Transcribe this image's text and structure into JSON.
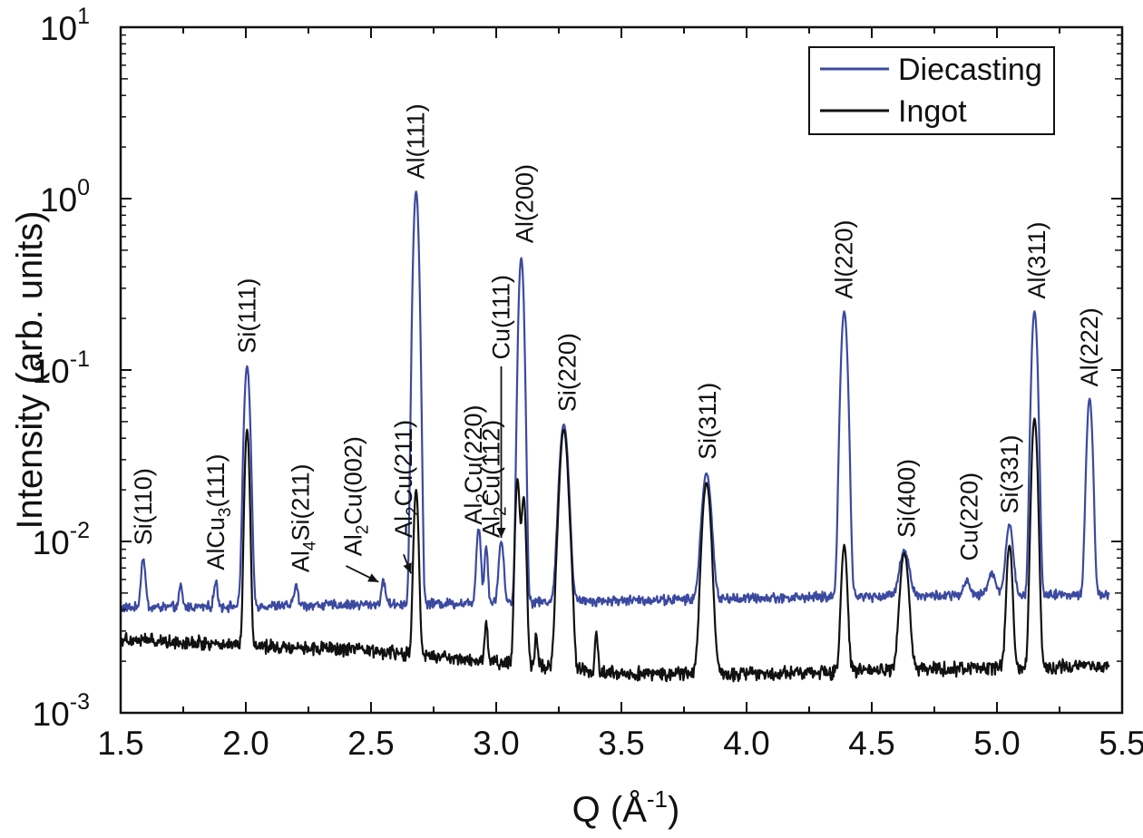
{
  "chart_data": {
    "type": "line",
    "title": "",
    "xlabel": "Q (Å-1)",
    "xlabel_parts": {
      "main": "Q (Å",
      "sup": "-1",
      "close": ")"
    },
    "ylabel": "Intensity (arb. units)",
    "xlim": [
      1.5,
      5.5
    ],
    "ylim": [
      0.001,
      10
    ],
    "yscale": "log",
    "x_ticks": [
      "1.5",
      "2.0",
      "2.5",
      "3.0",
      "3.5",
      "4.0",
      "4.5",
      "5.0",
      "5.5"
    ],
    "y_ticks": [
      {
        "base": "10",
        "exp": "-3",
        "value": 0.001
      },
      {
        "base": "10",
        "exp": "-2",
        "value": 0.01
      },
      {
        "base": "10",
        "exp": "-1",
        "value": 0.1
      },
      {
        "base": "10",
        "exp": "0",
        "value": 1
      },
      {
        "base": "10",
        "exp": "1",
        "value": 10
      }
    ],
    "legend_position": "top-right",
    "series": [
      {
        "name": "Diecasting",
        "color": "#3b49a0",
        "baseline": [
          [
            1.5,
            0.0041
          ],
          [
            3.0,
            0.0044
          ],
          [
            4.5,
            0.0048
          ],
          [
            5.45,
            0.0049
          ]
        ],
        "x_range": [
          1.5,
          5.45
        ],
        "noise": 0.05,
        "peaks": [
          {
            "x": 1.59,
            "y": 0.008,
            "w": 0.008
          },
          {
            "x": 1.74,
            "y": 0.0055,
            "w": 0.006
          },
          {
            "x": 1.88,
            "y": 0.0058,
            "w": 0.007
          },
          {
            "x": 2.005,
            "y": 0.105,
            "w": 0.01
          },
          {
            "x": 2.2,
            "y": 0.0056,
            "w": 0.007
          },
          {
            "x": 2.55,
            "y": 0.0058,
            "w": 0.008
          },
          {
            "x": 2.68,
            "y": 1.1,
            "w": 0.009
          },
          {
            "x": 2.93,
            "y": 0.012,
            "w": 0.008
          },
          {
            "x": 2.96,
            "y": 0.0095,
            "w": 0.006
          },
          {
            "x": 3.02,
            "y": 0.01,
            "w": 0.009
          },
          {
            "x": 3.1,
            "y": 0.45,
            "w": 0.009
          },
          {
            "x": 3.27,
            "y": 0.048,
            "w": 0.015
          },
          {
            "x": 3.84,
            "y": 0.025,
            "w": 0.016
          },
          {
            "x": 4.39,
            "y": 0.22,
            "w": 0.011
          },
          {
            "x": 4.63,
            "y": 0.0088,
            "w": 0.018
          },
          {
            "x": 4.88,
            "y": 0.0058,
            "w": 0.012
          },
          {
            "x": 4.98,
            "y": 0.0065,
            "w": 0.015
          },
          {
            "x": 5.05,
            "y": 0.0125,
            "w": 0.013
          },
          {
            "x": 5.15,
            "y": 0.22,
            "w": 0.01
          },
          {
            "x": 5.37,
            "y": 0.068,
            "w": 0.01
          }
        ]
      },
      {
        "name": "Ingot",
        "color": "#111111",
        "baseline": [
          [
            1.5,
            0.0027
          ],
          [
            2.5,
            0.0023
          ],
          [
            3.5,
            0.0017
          ],
          [
            4.0,
            0.0017
          ],
          [
            5.45,
            0.0019
          ]
        ],
        "x_range": [
          1.5,
          5.45
        ],
        "noise": 0.07,
        "peaks": [
          {
            "x": 2.005,
            "y": 0.045,
            "w": 0.008
          },
          {
            "x": 2.68,
            "y": 0.02,
            "w": 0.008
          },
          {
            "x": 2.96,
            "y": 0.0035,
            "w": 0.005
          },
          {
            "x": 3.085,
            "y": 0.023,
            "w": 0.008
          },
          {
            "x": 3.11,
            "y": 0.018,
            "w": 0.008
          },
          {
            "x": 3.16,
            "y": 0.003,
            "w": 0.005
          },
          {
            "x": 3.24,
            "y": 0.0035,
            "w": 0.008
          },
          {
            "x": 3.27,
            "y": 0.045,
            "w": 0.014
          },
          {
            "x": 3.3,
            "y": 0.0045,
            "w": 0.008
          },
          {
            "x": 3.4,
            "y": 0.003,
            "w": 0.005
          },
          {
            "x": 3.84,
            "y": 0.022,
            "w": 0.015
          },
          {
            "x": 4.39,
            "y": 0.0095,
            "w": 0.01
          },
          {
            "x": 4.63,
            "y": 0.0085,
            "w": 0.015
          },
          {
            "x": 5.05,
            "y": 0.0095,
            "w": 0.01
          },
          {
            "x": 5.15,
            "y": 0.052,
            "w": 0.01
          }
        ]
      }
    ],
    "peak_labels": [
      {
        "text": "Si(110)",
        "x": 1.59,
        "y": 0.0095
      },
      {
        "text": "AlCu",
        "sub": "3",
        "rest": "(111)",
        "x": 1.88,
        "y": 0.0068
      },
      {
        "text": "Si(111)",
        "x": 2.005,
        "y": 0.125
      },
      {
        "text": "Al",
        "sub": "4",
        "rest": "Si(211)",
        "x": 2.22,
        "y": 0.0066
      },
      {
        "text": "Al",
        "sub": "2",
        "rest": "Cu(002)",
        "x": 2.43,
        "y": 0.0082
      },
      {
        "text": "Al",
        "sub": "2",
        "rest": "Cu(211)",
        "x": 2.63,
        "y": 0.0105
      },
      {
        "text": "Al(111)",
        "x": 2.68,
        "y": 1.3
      },
      {
        "text": "Al",
        "sub": "2",
        "rest": "Cu(220)",
        "x": 2.91,
        "y": 0.0125
      },
      {
        "text": "Al",
        "sub": "2",
        "rest": "Cu(112)",
        "x": 2.98,
        "y": 0.0105
      },
      {
        "text": "Cu(111)",
        "x": 3.02,
        "y": 0.115
      },
      {
        "text": "Al(200)",
        "x": 3.115,
        "y": 0.55
      },
      {
        "text": "Si(220)",
        "x": 3.285,
        "y": 0.057
      },
      {
        "text": "Si(311)",
        "x": 3.845,
        "y": 0.03
      },
      {
        "text": "Al(220)",
        "x": 4.39,
        "y": 0.26
      },
      {
        "text": "Si(400)",
        "x": 4.64,
        "y": 0.0105
      },
      {
        "text": "Cu(220)",
        "x": 4.89,
        "y": 0.0077
      },
      {
        "text": "Si(331)",
        "x": 5.05,
        "y": 0.0145
      },
      {
        "text": "Al(311)",
        "x": 5.16,
        "y": 0.26
      },
      {
        "text": "Al(222)",
        "x": 5.37,
        "y": 0.08
      }
    ],
    "arrows": [
      {
        "from": [
          2.4,
          0.0072
        ],
        "to": [
          2.53,
          0.0058
        ]
      },
      {
        "from": [
          2.63,
          0.0084
        ],
        "to": [
          2.66,
          0.0065
        ]
      },
      {
        "from": [
          3.02,
          0.105
        ],
        "to": [
          3.02,
          0.0105
        ]
      }
    ]
  }
}
